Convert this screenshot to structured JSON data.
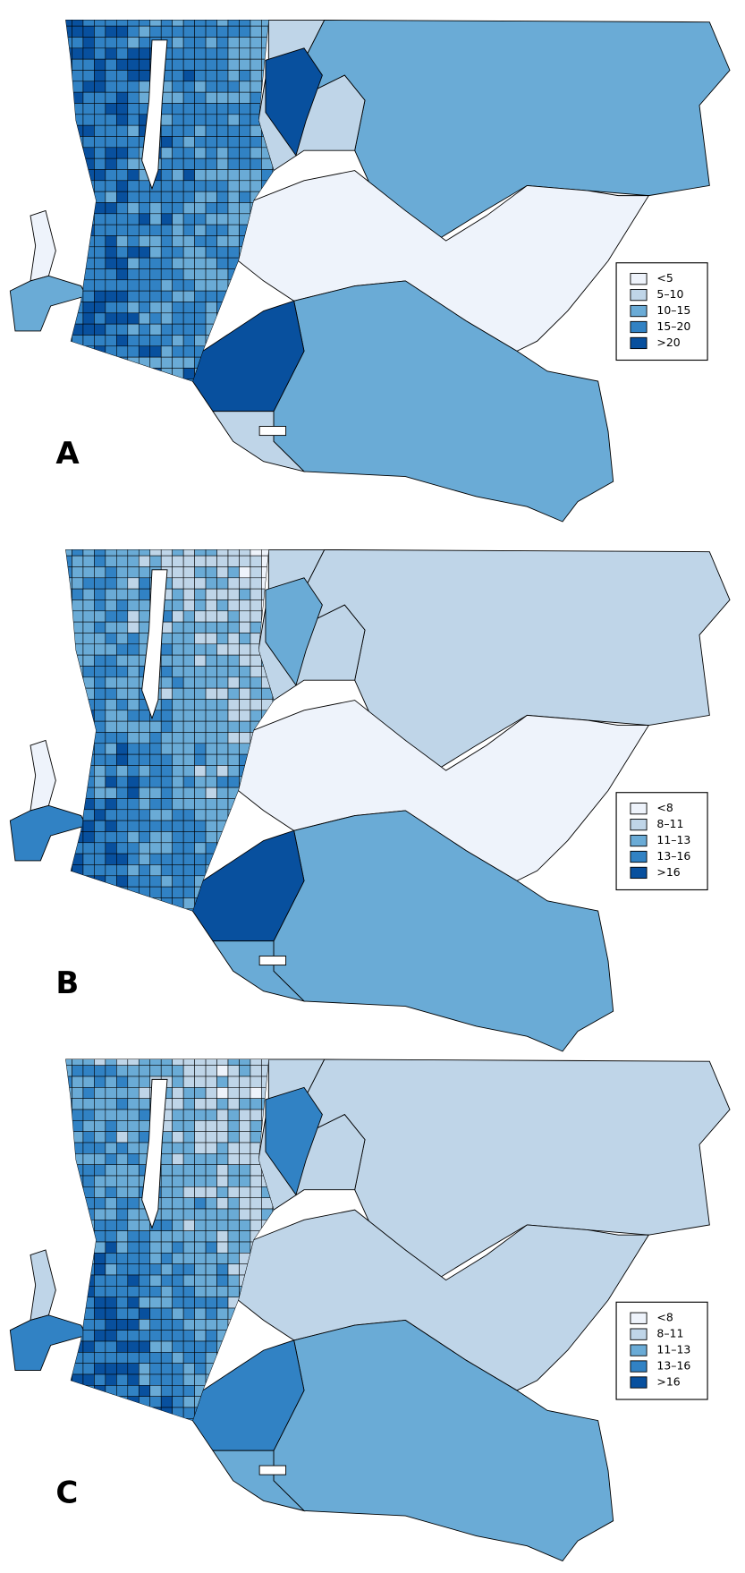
{
  "panels": [
    {
      "label": "A",
      "legend": [
        {
          "label": "<5",
          "color": "#eef3fb"
        },
        {
          "label": "5–10",
          "color": "#bfd5e8"
        },
        {
          "label": "10–15",
          "color": "#6aabd6"
        },
        {
          "label": "15–20",
          "color": "#3182c4"
        },
        {
          "label": ">20",
          "color": "#08509e"
        }
      ]
    },
    {
      "label": "B",
      "legend": [
        {
          "label": "<8",
          "color": "#eef3fb"
        },
        {
          "label": "8–11",
          "color": "#bfd5e8"
        },
        {
          "label": "11–13",
          "color": "#6aabd6"
        },
        {
          "label": "13–16",
          "color": "#3182c4"
        },
        {
          "label": ">16",
          "color": "#08509e"
        }
      ]
    },
    {
      "label": "C",
      "legend": [
        {
          "label": "<8",
          "color": "#eef3fb"
        },
        {
          "label": "8–11",
          "color": "#bfd5e8"
        },
        {
          "label": "11–13",
          "color": "#6aabd6"
        },
        {
          "label": "13–16",
          "color": "#3182c4"
        },
        {
          "label": ">16",
          "color": "#08509e"
        }
      ]
    }
  ]
}
